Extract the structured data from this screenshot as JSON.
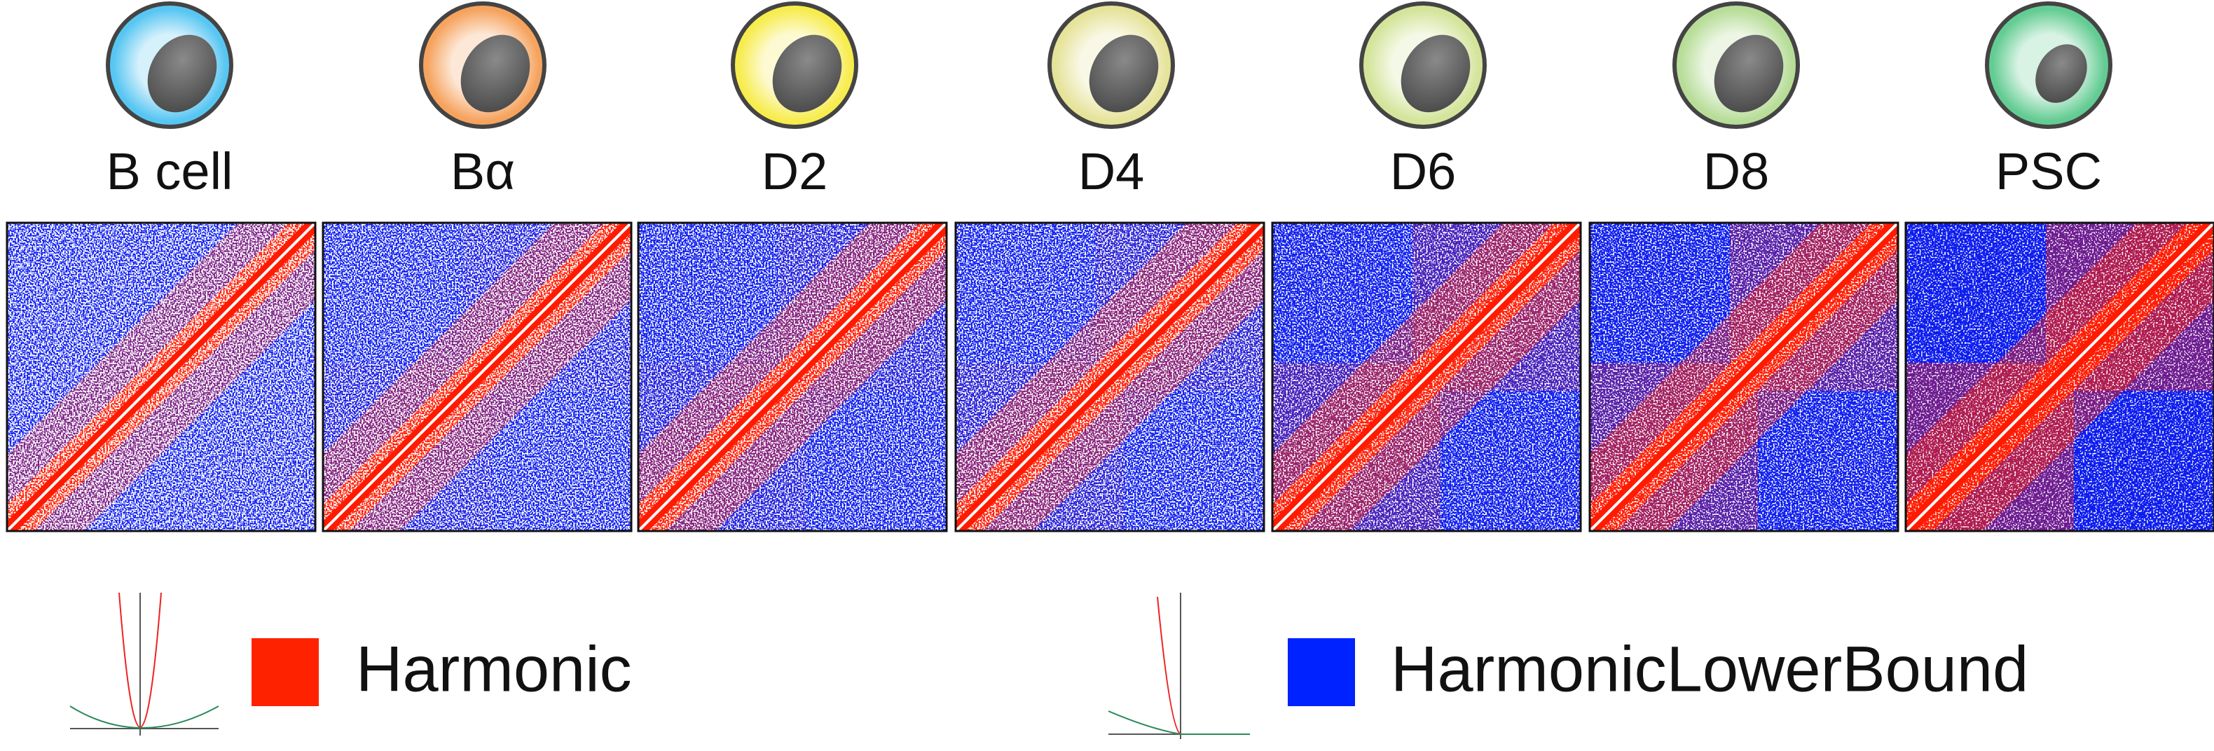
{
  "panels": [
    {
      "label": "B cell"
    },
    {
      "label": "Bα"
    },
    {
      "label": "D2"
    },
    {
      "label": "D4"
    },
    {
      "label": "D6"
    },
    {
      "label": "D8"
    },
    {
      "label": "PSC"
    }
  ],
  "legend": [
    {
      "label": "Harmonic"
    },
    {
      "label": "HarmonicLowerBound"
    }
  ]
}
